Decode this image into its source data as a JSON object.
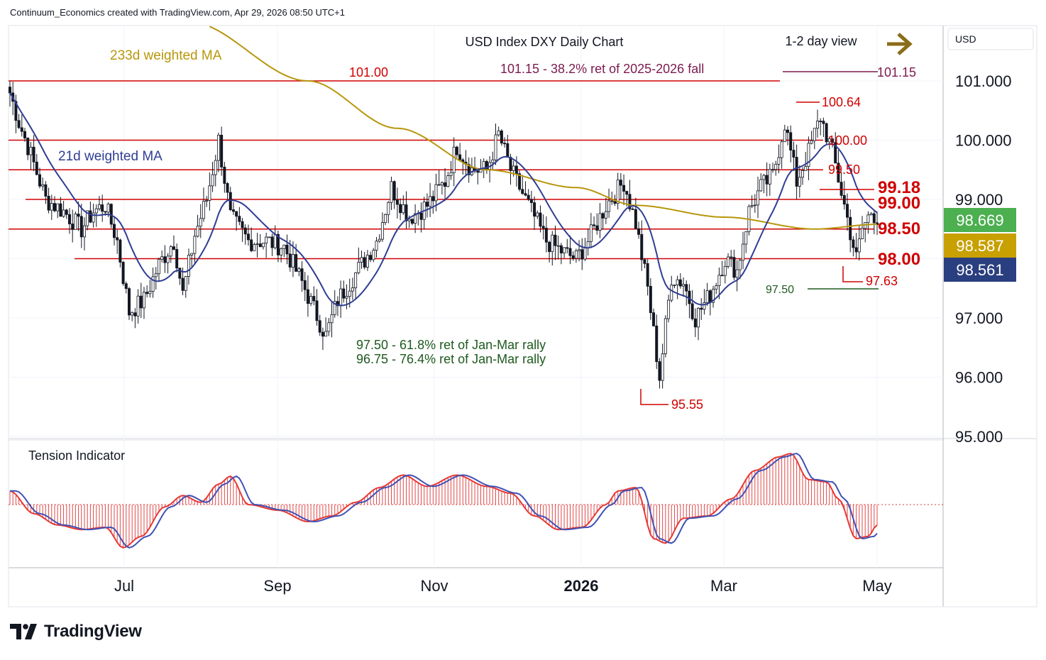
{
  "header": {
    "credit": "Continuum_Economics created with TradingView.com, Apr 29, 2026 08:50 UTC+1"
  },
  "chart_data": {
    "type": "candlestick",
    "title": "USD Index DXY Daily Chart",
    "view": "1-2 day view",
    "currency": "USD",
    "y_axis_ticks": [
      "101.000",
      "100.000",
      "99.000",
      "98.000",
      "97.000",
      "96.000",
      "95.000"
    ],
    "y_range": [
      95.0,
      101.9
    ],
    "x_axis_ticks": [
      "Jul",
      "Sep",
      "Nov",
      "2026",
      "Mar",
      "May"
    ],
    "price_badges": [
      {
        "value": "98.669",
        "color": "#4caf50"
      },
      {
        "value": "98.587",
        "color": "#c8a000"
      },
      {
        "value": "98.561",
        "color": "#2a3f7f"
      }
    ],
    "levels": [
      {
        "label": "101.00",
        "value": 101.0
      },
      {
        "label": "100.00",
        "value": 100.0
      },
      {
        "label": "99.50",
        "value": 99.5
      },
      {
        "label": "99.00",
        "value": 99.0
      },
      {
        "label": "98.50",
        "value": 98.5
      },
      {
        "label": "98.00",
        "value": 98.0
      }
    ],
    "annotations": {
      "fib_38": "101.15 - 38.2% ret of 2025-2026 fall",
      "fib_38_value": "101.15",
      "high": "100.64",
      "recent_high": "99.18",
      "recent_low": "97.63",
      "fib_61_value": "97.50",
      "low": "95.55",
      "fib_61": "97.50 - 61.8% ret of Jan-Mar rally",
      "fib_76": "96.75 - 76.4% ret of Jan-Mar rally"
    },
    "ma_labels": {
      "ma233": "233d weighted MA",
      "ma21": "21d weighted MA"
    },
    "anchors": [
      [
        0,
        100.8
      ],
      [
        3,
        100.3
      ],
      [
        6,
        99.9
      ],
      [
        12,
        99.0
      ],
      [
        18,
        98.8
      ],
      [
        24,
        98.5
      ],
      [
        28,
        98.8
      ],
      [
        32,
        98.9
      ],
      [
        36,
        98.3
      ],
      [
        40,
        97.1
      ],
      [
        45,
        97.3
      ],
      [
        50,
        97.9
      ],
      [
        55,
        98.3
      ],
      [
        58,
        97.4
      ],
      [
        62,
        98.4
      ],
      [
        66,
        99.0
      ],
      [
        70,
        100.0
      ],
      [
        74,
        98.7
      ],
      [
        80,
        98.3
      ],
      [
        86,
        98.3
      ],
      [
        92,
        98.2
      ],
      [
        98,
        97.6
      ],
      [
        106,
        96.7
      ],
      [
        110,
        97.3
      ],
      [
        118,
        97.9
      ],
      [
        123,
        98.3
      ],
      [
        128,
        99.2
      ],
      [
        134,
        98.7
      ],
      [
        140,
        98.9
      ],
      [
        146,
        99.3
      ],
      [
        150,
        99.9
      ],
      [
        155,
        99.5
      ],
      [
        160,
        99.5
      ],
      [
        164,
        100.1
      ],
      [
        168,
        99.5
      ],
      [
        174,
        98.9
      ],
      [
        180,
        98.3
      ],
      [
        186,
        98.1
      ],
      [
        190,
        98.0
      ],
      [
        194,
        98.3
      ],
      [
        200,
        98.9
      ],
      [
        206,
        99.3
      ],
      [
        210,
        98.6
      ],
      [
        214,
        97.5
      ],
      [
        218,
        96.0
      ],
      [
        222,
        97.7
      ],
      [
        226,
        97.6
      ],
      [
        230,
        97.0
      ],
      [
        235,
        97.4
      ],
      [
        240,
        98.0
      ],
      [
        244,
        97.8
      ],
      [
        248,
        98.8
      ],
      [
        252,
        99.2
      ],
      [
        256,
        99.4
      ],
      [
        260,
        100.3
      ],
      [
        264,
        99.3
      ],
      [
        268,
        99.8
      ],
      [
        272,
        100.4
      ],
      [
        276,
        99.8
      ],
      [
        280,
        98.9
      ],
      [
        284,
        98.0
      ],
      [
        286,
        98.5
      ],
      [
        289,
        98.8
      ],
      [
        291,
        98.7
      ]
    ],
    "tension": [
      [
        0,
        0.12
      ],
      [
        8,
        -0.08
      ],
      [
        16,
        -0.18
      ],
      [
        24,
        -0.22
      ],
      [
        32,
        -0.2
      ],
      [
        38,
        -0.38
      ],
      [
        44,
        -0.28
      ],
      [
        52,
        -0.02
      ],
      [
        58,
        0.08
      ],
      [
        64,
        0.02
      ],
      [
        70,
        0.18
      ],
      [
        74,
        0.25
      ],
      [
        80,
        0.0
      ],
      [
        90,
        -0.05
      ],
      [
        100,
        -0.15
      ],
      [
        108,
        -0.1
      ],
      [
        116,
        0.02
      ],
      [
        124,
        0.15
      ],
      [
        132,
        0.26
      ],
      [
        140,
        0.16
      ],
      [
        150,
        0.26
      ],
      [
        160,
        0.16
      ],
      [
        168,
        0.1
      ],
      [
        176,
        -0.1
      ],
      [
        184,
        -0.22
      ],
      [
        192,
        -0.2
      ],
      [
        200,
        0.0
      ],
      [
        204,
        0.12
      ],
      [
        210,
        0.15
      ],
      [
        216,
        -0.3
      ],
      [
        220,
        -0.34
      ],
      [
        226,
        -0.12
      ],
      [
        234,
        -0.1
      ],
      [
        242,
        0.05
      ],
      [
        250,
        0.3
      ],
      [
        258,
        0.42
      ],
      [
        262,
        0.45
      ],
      [
        268,
        0.22
      ],
      [
        274,
        0.2
      ],
      [
        278,
        0.05
      ],
      [
        284,
        -0.3
      ],
      [
        288,
        -0.28
      ],
      [
        291,
        -0.18
      ]
    ],
    "tension_label": "Tension Indicator"
  },
  "brand": {
    "name": "TradingView"
  }
}
